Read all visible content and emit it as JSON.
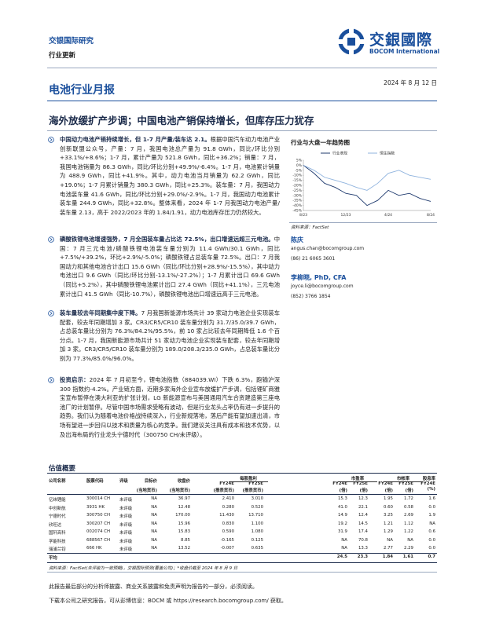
{
  "header": {
    "brand": "交银国际研究",
    "doc_type": "行业更新",
    "logo_cn": "交銀國際",
    "logo_en": "BOCOM International"
  },
  "report": {
    "series": "电池行业月报",
    "date": "2024 年 8 月 12 日",
    "title": "海外放缓扩产步调；中国电池产销保持增长，但库存压力犹存"
  },
  "paragraphs": [
    {
      "lead": "中国动力电池产销持续增长，但 1-7 月产量/装车达 2.1。",
      "text": "根据中国汽车动力电池产业创新联盟公众号，产量：7 月，我国电池总产量为 91.8 GWh，同比/环比分别+33.1%/+8.6%；1-7 月，累计产量为 521.8 GWh，同比+36.2%；销量：7 月，我国电池销量为 86.3 GWh，同比/环比分别+49.9%/-6.4%。1-7 月，电池累计销量为 488.9 GWh，同比+41.9%。其中，动力电池当月销量为 62.2 GWh，同比+19.0%；1-7 月累计销量为 380.3 GWh，同比+25.3%。装车量：7 月，我国动力电池装车量 41.6 GWh，同比/环比分别+29.0%/-2.9%。1-7 月，我国动力电池累计装车量 244.9 GWh，同比+32.8%。整体来看，2024 年 1-7 月我国动力电池产量/装车量 2.13，高于 2022/2023 年的 1.84/1.91，动力电池库存压力仍然较大。"
    },
    {
      "lead": "磷酸铁锂电池增速强势，7 月全国装车量占比达 72.5%，出口增速远超三元电池。",
      "text": "中国：7 月三元电池/磷酸铁锂电池装车量分别为 11.4 GWh/30.1 GWh，同比+7.5%/+39.2%，环比+2.9%/-5.0%；磷酸铁锂占总装车量 72.5%。出口：7 月我国动力和其他电池合计出口 15.6 GWh（同比/环比分别+28.9%/-15.5%），其中动力电池出口 9.6 GWh（同比/环比分别-13.1%/-27.2%）；1-7 月累计出口 69.6 GWh（同比+5.2%），其中磷酸铁锂电池累计出口 27.4 GWh（同比+41.1%），三元电池累计出口 41.5 GWh（同比-10.7%），磷酸铁锂电池出口增速远高于三元电池。"
    },
    {
      "lead": "装车量较去年同期集中度下降。",
      "text": "7 月我国新能源市场共计 39 家动力电池企业实现装车配套，较去年同期增加 3 家。CR3/CR5/CR10 装车量分别为 31.7/35.0/39.7 GWh，占总装车量比分别为 76.3%/84.2%/95.5%，前 10 家占比较去年同期降低 1.6 个百分点。1-7 月，我国新能源市场共计 51 家动力电池企业实现装车配套，较去年同期增加 3 家。CR3/CR5/CR10 装车量分别为 189.0/208.3/235.0 GWh，占总装车量比分别为 77.3%/85.0%/96.0%。"
    },
    {
      "lead": "投资启示：",
      "text": "2024 年 7 月初至今，锂电池指数（884039.WI）下跌 6.3%，跑输沪深 300 指数约-4.2%。产业链方面，近期多家海外企业宣布放缓扩产步调，包括锂矿商雅宝宣布暂停在澳大利亚的扩张计划，LG 新能源宣布与美国通用汽车合资建造第三座电池厂的计划暂停。尽管中国市场需求受略有波动，但是行业龙头占率仍有进一步提升的趋势。我们认为随着电池价格战持续深入，行业新规落地，落后产能有望加速出清，市场有望进一步回归以技术和质量为核心的竞争。我们建议关注具有成本和技术优势，以及出海布局的行业龙头宁德时代（300750 CH/未评级）。"
    }
  ],
  "trend_chart": {
    "title": "行业与大盘一年趋势图",
    "categories": [
      "8/23",
      null,
      null,
      null,
      "12/23",
      null,
      null,
      null,
      "4/24",
      null,
      null,
      null,
      "8/24"
    ],
    "series": [
      {
        "name": "行业表现",
        "color": "#1f3a6e",
        "values": [
          0,
          -8,
          -18,
          -22,
          -28,
          -30,
          -40,
          -35,
          -25,
          -30,
          -28,
          -33,
          -36
        ]
      },
      {
        "name": "恒生指数",
        "color": "#8fb3de",
        "values": [
          0,
          -5,
          -12,
          -15,
          -18,
          -22,
          -25,
          -18,
          -8,
          -5,
          -10,
          -12,
          -14
        ]
      }
    ],
    "ylim": [
      -45,
      5
    ],
    "yticks": [
      {
        "value": 5,
        "label": "5%"
      },
      {
        "value": 0,
        "label": "0%"
      },
      {
        "value": -5,
        "label": "-5%"
      },
      {
        "value": -10,
        "label": "-10%"
      },
      {
        "value": -15,
        "label": "-15%"
      },
      {
        "value": -20,
        "label": "-20%"
      },
      {
        "value": -25,
        "label": "-25%"
      },
      {
        "value": -30,
        "label": "-30%"
      },
      {
        "value": -35,
        "label": "-35%"
      },
      {
        "value": -40,
        "label": "-40%"
      },
      {
        "value": -45,
        "label": "-45%"
      }
    ],
    "source": "资料来源：FactSet"
  },
  "analysts": [
    {
      "name": "陈庆",
      "email": "angus.chan@bocomgroup.com",
      "phone": "(86) 21 6065 3601"
    },
    {
      "name": "李柳晓, PhD, CFA",
      "email": "joyce.li@bocomgroup.com",
      "phone": "(852) 3766 1854"
    }
  ],
  "table": {
    "title": "估值概要",
    "groups": [
      "每股盈利",
      "市盈率",
      "市帐率",
      "股息率"
    ],
    "header": [
      "公司名称",
      "股票代码",
      "评级",
      "目标价",
      "收盘价",
      "FY24E",
      "FY25E",
      "FY24E",
      "FY25E",
      "FY24E",
      "FY25E",
      "FY24E"
    ],
    "units": [
      "(当地货币)",
      "(当地货币)",
      "(报表货币)",
      "(报表货币)",
      "(倍)",
      "(倍)",
      "(倍)",
      "(倍)",
      "(%)"
    ],
    "rows": [
      [
        "亿纬锂能",
        "300014 CH",
        "未评级",
        "NA",
        "36.97",
        "2.410",
        "3.010",
        "15.3",
        "12.3",
        "1.95",
        "1.72",
        "1.6"
      ],
      [
        "中创新航",
        "3931 HK",
        "未评级",
        "NA",
        "12.48",
        "0.280",
        "0.520",
        "41.0",
        "22.1",
        "0.60",
        "0.58",
        "0.0"
      ],
      [
        "宁德时代",
        "300750 CH",
        "未评级",
        "NA",
        "170.00",
        "11.430",
        "13.710",
        "14.9",
        "12.4",
        "3.25",
        "2.69",
        "1.9"
      ],
      [
        "欣旺达",
        "300207 CH",
        "未评级",
        "NA",
        "15.96",
        "0.830",
        "1.100",
        "19.2",
        "14.5",
        "1.21",
        "1.12",
        "NA"
      ],
      [
        "国轩高科",
        "002074 CH",
        "未评级",
        "NA",
        "15.83",
        "0.590",
        "1.080",
        "31.9",
        "17.4",
        "1.29",
        "1.22",
        "0.6"
      ],
      [
        "孚能科技",
        "688567 CH",
        "未评级",
        "NA",
        "8.85",
        "-0.165",
        "0.125",
        "NA",
        "70.8",
        "NA",
        "NA",
        "0.0"
      ],
      [
        "瑞浦兰钧",
        "666 HK",
        "未评级",
        "NA",
        "13.52",
        "-0.007",
        "0.635",
        "NA",
        "13.3",
        "2.77",
        "2.29",
        "0.0"
      ],
      [
        "平均",
        "",
        "",
        "",
        "",
        "",
        "",
        "24.5",
        "23.3",
        "1.84",
        "1.61",
        "0.7"
      ]
    ],
    "note": "资料来源：FactSet(未评级为一致预期)，交银国际预测(覆盖公司)；*收盘价截至 2024 年 8 月 9 日"
  },
  "footer": {
    "line1": "此报告最后部分的分析师披露、商业关系披露和免责声明为报告的一部分，必须阅读。",
    "line2": "下载本公司之研究报告，可从彭博信息：BOCM 或 https://research.bocomgroup.com/ 获取。"
  }
}
